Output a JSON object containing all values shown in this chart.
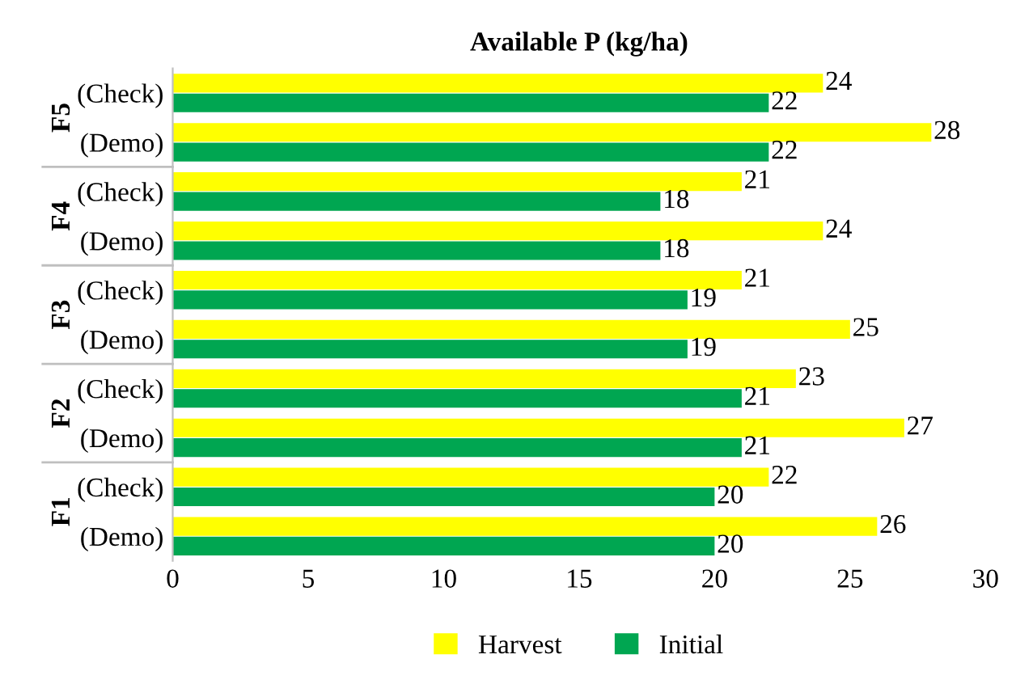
{
  "chart_data": {
    "type": "bar",
    "orientation": "horizontal",
    "title": "Available P (kg/ha)",
    "categories": [
      "(Check)",
      "(Demo)",
      "(Check)",
      "(Demo)",
      "(Check)",
      "(Demo)",
      "(Check)",
      "(Demo)",
      "(Check)",
      "(Demo)"
    ],
    "annotations": [
      "F5",
      "F4",
      "F3",
      "F2",
      "F1"
    ],
    "series": [
      {
        "name": "Harvest",
        "color": "#ffff00",
        "values": [
          24,
          28,
          21,
          24,
          21,
          25,
          23,
          27,
          22,
          26
        ]
      },
      {
        "name": "Initial",
        "color": "#00a651",
        "values": [
          22,
          22,
          18,
          18,
          19,
          19,
          21,
          21,
          20,
          20
        ]
      }
    ],
    "xlim": [
      0,
      30
    ],
    "xticks": [
      0,
      5,
      10,
      15,
      20,
      25,
      30
    ],
    "data_labels": true,
    "legend": "bottom",
    "grid": false
  }
}
